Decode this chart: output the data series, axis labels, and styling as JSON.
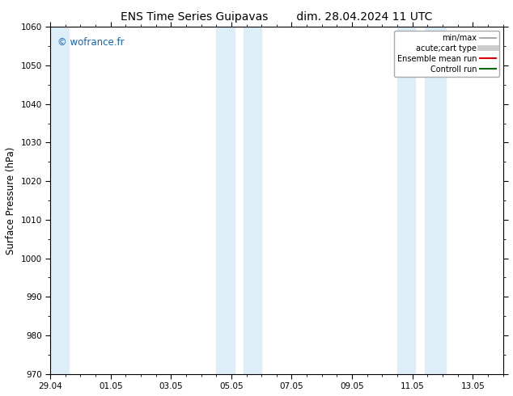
{
  "title_left": "ENS Time Series Guipavas",
  "title_right": "dim. 28.04.2024 11 UTC",
  "ylabel": "Surface Pressure (hPa)",
  "ylim": [
    970,
    1060
  ],
  "yticks": [
    970,
    980,
    990,
    1000,
    1010,
    1020,
    1030,
    1040,
    1050,
    1060
  ],
  "xtick_labels": [
    "29.04",
    "01.05",
    "03.05",
    "05.05",
    "07.05",
    "09.05",
    "11.05",
    "13.05"
  ],
  "xtick_positions": [
    0,
    2,
    4,
    6,
    8,
    10,
    12,
    14
  ],
  "xstart_days": 0,
  "xend_days": 15,
  "bg_color": "#ffffff",
  "plot_bg_color": "#ffffff",
  "shade_color": "#ddeef9",
  "shade_bands": [
    {
      "xstart": -0.1,
      "xend": 0.6
    },
    {
      "xstart": 5.5,
      "xend": 6.1
    },
    {
      "xstart": 6.4,
      "xend": 7.0
    },
    {
      "xstart": 11.5,
      "xend": 12.1
    },
    {
      "xstart": 12.4,
      "xend": 13.1
    }
  ],
  "watermark": "© wofrance.fr",
  "watermark_color": "#1464b4",
  "legend_items": [
    {
      "label": "min/max",
      "color": "#999999",
      "lw": 1.2,
      "style": "solid"
    },
    {
      "label": "acute;cart type",
      "color": "#cccccc",
      "lw": 5,
      "style": "solid"
    },
    {
      "label": "Ensemble mean run",
      "color": "#dd0000",
      "lw": 1.5,
      "style": "solid"
    },
    {
      "label": "Controll run",
      "color": "#006600",
      "lw": 1.5,
      "style": "solid"
    }
  ],
  "title_fontsize": 10,
  "tick_fontsize": 7.5,
  "ylabel_fontsize": 8.5,
  "watermark_fontsize": 8.5,
  "legend_fontsize": 7
}
